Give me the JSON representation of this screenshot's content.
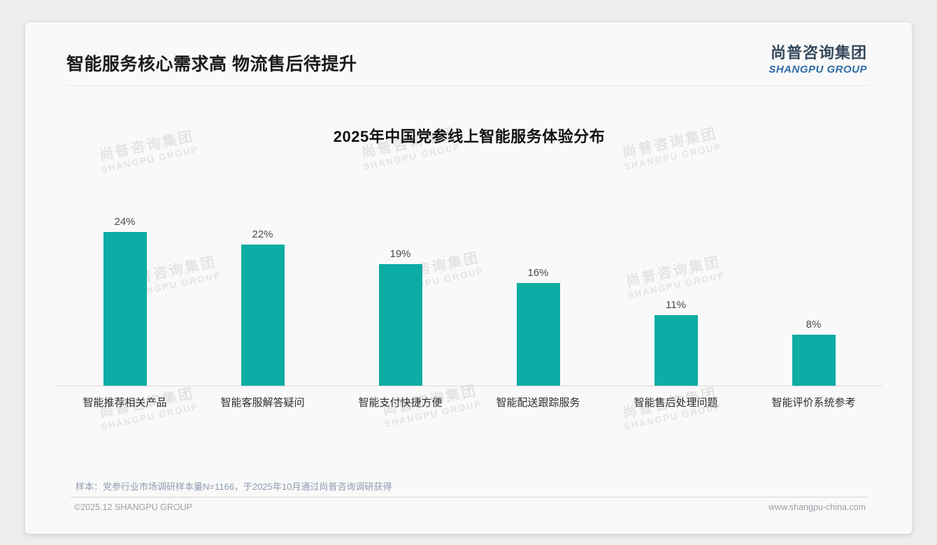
{
  "page": {
    "title": "智能服务核心需求高 物流售后待提升"
  },
  "logo": {
    "cn": "尚普咨询集团",
    "en": "SHANGPU GROUP"
  },
  "watermark": {
    "cn": "尚普咨询集团",
    "en": "SHANGPU GROUP"
  },
  "chart_data": {
    "type": "bar",
    "title": "2025年中国党参线上智能服务体验分布",
    "categories": [
      "智能推荐相关产品",
      "智能客服解答疑问",
      "智能支付快捷方便",
      "智能配送跟踪服务",
      "智能售后处理问题",
      "智能评价系统参考"
    ],
    "values": [
      24,
      22,
      19,
      16,
      11,
      8
    ],
    "value_labels": [
      "24%",
      "22%",
      "19%",
      "16%",
      "11%",
      "8%"
    ],
    "bar_color": "#0daca4",
    "xlabel": "",
    "ylabel": "",
    "ylim": [
      0,
      26
    ],
    "grid": false,
    "legend": "none",
    "data_labels": true
  },
  "footnote": {
    "sample": "样本：党参行业市场调研样本量N=1166，于2025年10月通过尚普咨询调研获得"
  },
  "footer": {
    "left": "©2025.12 SHANGPU GROUP",
    "right": "www.shangpu-china.com"
  }
}
